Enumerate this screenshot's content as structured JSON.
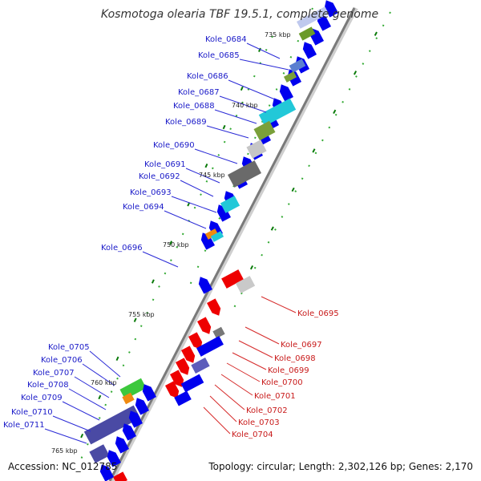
{
  "title": "Kosmotoga olearia TBF 19.5.1, complete genome",
  "footer": {
    "accession": "Accession: NC_012785",
    "summary": "Topology: circular; Length: 2,302,126 bp; Genes: 2,170"
  },
  "colors": {
    "forward": "#0000ee",
    "reverse": "#ee0000",
    "backbone": "#7a7a7a",
    "tick_major": "#0a7a0a",
    "tick_minor": "#33aa33"
  },
  "kbp_marks": [
    {
      "label": "735 kbp",
      "kbp": 735
    },
    {
      "label": "740 kbp",
      "kbp": 740
    },
    {
      "label": "745 kbp",
      "kbp": 745
    },
    {
      "label": "750 kbp",
      "kbp": 750
    },
    {
      "label": "755 kbp",
      "kbp": 755
    },
    {
      "label": "760 kbp",
      "kbp": 760
    },
    {
      "label": "765 kbp",
      "kbp": 765
    }
  ],
  "genes_forward": [
    {
      "label": "Kole_0684"
    },
    {
      "label": "Kole_0685"
    },
    {
      "label": "Kole_0686"
    },
    {
      "label": "Kole_0687"
    },
    {
      "label": "Kole_0688"
    },
    {
      "label": "Kole_0689"
    },
    {
      "label": "Kole_0690"
    },
    {
      "label": "Kole_0691"
    },
    {
      "label": "Kole_0692"
    },
    {
      "label": "Kole_0693"
    },
    {
      "label": "Kole_0694"
    },
    {
      "label": "Kole_0696"
    },
    {
      "label": "Kole_0705"
    },
    {
      "label": "Kole_0706"
    },
    {
      "label": "Kole_0707"
    },
    {
      "label": "Kole_0708"
    },
    {
      "label": "Kole_0709"
    },
    {
      "label": "Kole_0710"
    },
    {
      "label": "Kole_0711"
    }
  ],
  "genes_reverse": [
    {
      "label": "Kole_0695"
    },
    {
      "label": "Kole_0697"
    },
    {
      "label": "Kole_0698"
    },
    {
      "label": "Kole_0699"
    },
    {
      "label": "Kole_0700"
    },
    {
      "label": "Kole_0701"
    },
    {
      "label": "Kole_0702"
    },
    {
      "label": "Kole_0703"
    },
    {
      "label": "Kole_0704"
    }
  ]
}
